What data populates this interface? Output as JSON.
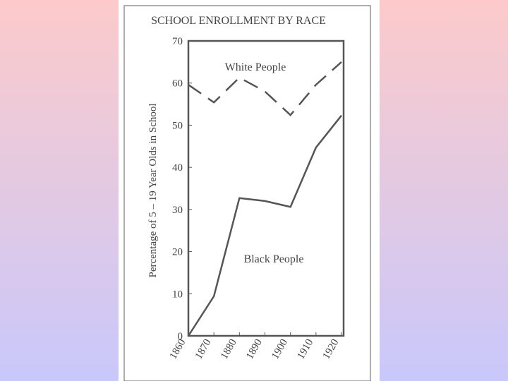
{
  "chart_data": {
    "type": "line",
    "title": "SCHOOL ENROLLMENT BY RACE",
    "y_label": "Percentage of 5 – 19 Year Olds in School",
    "x": [
      1860,
      1870,
      1880,
      1890,
      1900,
      1910,
      1920
    ],
    "xlim": [
      1860,
      1920
    ],
    "xticks": [
      1860,
      1870,
      1880,
      1890,
      1900,
      1910,
      1920
    ],
    "ylim": [
      0,
      70
    ],
    "yticks": [
      0,
      10,
      20,
      30,
      40,
      50,
      60,
      70
    ],
    "series": [
      {
        "name": "White People",
        "color": "#555555",
        "dashed": true,
        "values": [
          59.6,
          55.4,
          61.3,
          58,
          52.4,
          59.6,
          65
        ]
      },
      {
        "name": "Black People",
        "color": "#555555",
        "dashed": false,
        "values": [
          0,
          9.4,
          32.7,
          32,
          30.6,
          44.7,
          52.3
        ]
      }
    ]
  }
}
